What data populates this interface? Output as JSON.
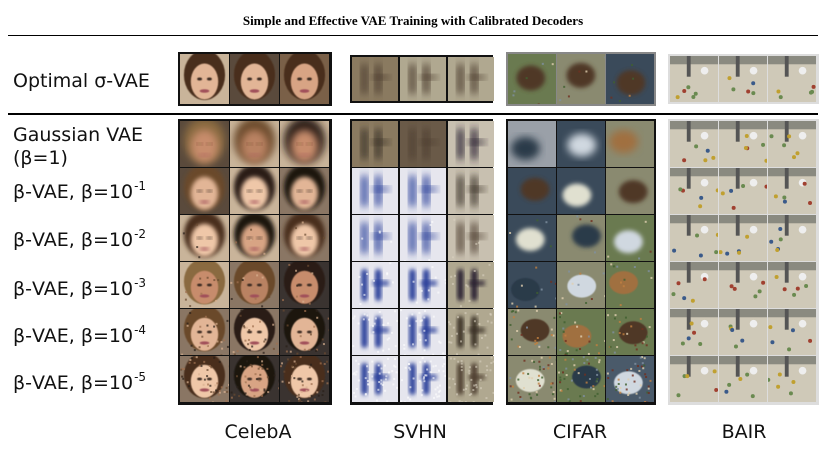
{
  "header": {
    "title": "Simple and Effective VAE Training with Calibrated Decoders"
  },
  "rows": {
    "optimal": "Optimal σ-VAE",
    "gaussian_line1": "Gaussian VAE",
    "gaussian_line2": "(β=1)",
    "beta1": {
      "base": "β-VAE, β=10",
      "exp": "-1"
    },
    "beta2": {
      "base": "β-VAE, β=10",
      "exp": "-2"
    },
    "beta3": {
      "base": "β-VAE, β=10",
      "exp": "-3"
    },
    "beta4": {
      "base": "β-VAE, β=10",
      "exp": "-4"
    },
    "beta5": {
      "base": "β-VAE, β=10",
      "exp": "-5"
    }
  },
  "columns": {
    "celeba": "CelebA",
    "svhn": "SVHN",
    "cifar": "CIFAR",
    "bair": "BAIR"
  },
  "images": {
    "celeba": "face-sample-icon",
    "svhn": "digit-sample-icon",
    "cifar": "object-sample-icon",
    "bair": "robot-scene-icon"
  },
  "colors": {
    "rule": "#000000",
    "svhn_blue": "#2a3f9a",
    "bair_floor": "#cfc9b8"
  }
}
